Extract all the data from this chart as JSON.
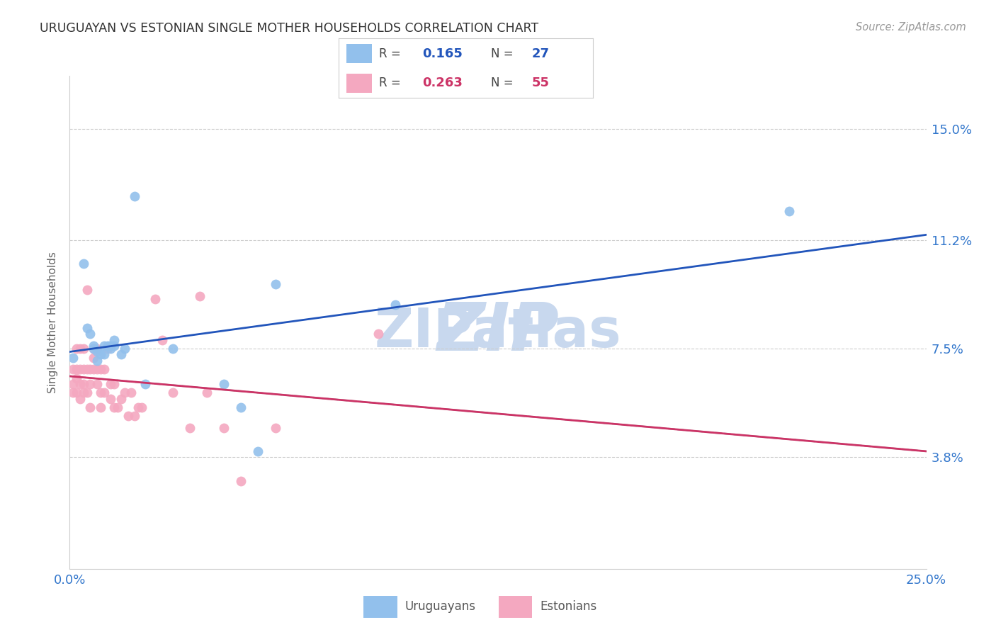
{
  "title": "URUGUAYAN VS ESTONIAN SINGLE MOTHER HOUSEHOLDS CORRELATION CHART",
  "source": "Source: ZipAtlas.com",
  "ylabel": "Single Mother Households",
  "ytick_labels": [
    "3.8%",
    "7.5%",
    "11.2%",
    "15.0%"
  ],
  "ytick_values": [
    0.038,
    0.075,
    0.112,
    0.15
  ],
  "xtick_labels": [
    "0.0%",
    "25.0%"
  ],
  "xtick_values": [
    0.0,
    0.25
  ],
  "xlim": [
    0.0,
    0.25
  ],
  "ylim": [
    0.0,
    0.168
  ],
  "uruguayan_color": "#92C0EC",
  "estonian_color": "#F4A8C0",
  "uruguayan_line_color": "#2255BB",
  "estonian_line_color": "#CC3366",
  "gray_dash_color": "#BBBBBB",
  "background_color": "#FFFFFF",
  "grid_color": "#CCCCCC",
  "title_color": "#333333",
  "axis_label_color": "#3377CC",
  "watermark_color": "#C8D8EE",
  "marker_size": 100,
  "uruguayan_points": [
    [
      0.001,
      0.072
    ],
    [
      0.004,
      0.104
    ],
    [
      0.005,
      0.082
    ],
    [
      0.006,
      0.08
    ],
    [
      0.007,
      0.075
    ],
    [
      0.007,
      0.076
    ],
    [
      0.008,
      0.074
    ],
    [
      0.008,
      0.071
    ],
    [
      0.009,
      0.073
    ],
    [
      0.01,
      0.076
    ],
    [
      0.01,
      0.073
    ],
    [
      0.011,
      0.076
    ],
    [
      0.012,
      0.075
    ],
    [
      0.012,
      0.076
    ],
    [
      0.013,
      0.076
    ],
    [
      0.013,
      0.078
    ],
    [
      0.015,
      0.073
    ],
    [
      0.016,
      0.075
    ],
    [
      0.019,
      0.127
    ],
    [
      0.022,
      0.063
    ],
    [
      0.03,
      0.075
    ],
    [
      0.045,
      0.063
    ],
    [
      0.05,
      0.055
    ],
    [
      0.055,
      0.04
    ],
    [
      0.06,
      0.097
    ],
    [
      0.095,
      0.09
    ],
    [
      0.21,
      0.122
    ]
  ],
  "estonian_points": [
    [
      0.001,
      0.068
    ],
    [
      0.001,
      0.063
    ],
    [
      0.001,
      0.06
    ],
    [
      0.002,
      0.075
    ],
    [
      0.002,
      0.068
    ],
    [
      0.002,
      0.065
    ],
    [
      0.002,
      0.06
    ],
    [
      0.003,
      0.075
    ],
    [
      0.003,
      0.068
    ],
    [
      0.003,
      0.063
    ],
    [
      0.003,
      0.058
    ],
    [
      0.004,
      0.075
    ],
    [
      0.004,
      0.068
    ],
    [
      0.004,
      0.063
    ],
    [
      0.004,
      0.06
    ],
    [
      0.005,
      0.095
    ],
    [
      0.005,
      0.068
    ],
    [
      0.005,
      0.06
    ],
    [
      0.006,
      0.068
    ],
    [
      0.006,
      0.063
    ],
    [
      0.006,
      0.055
    ],
    [
      0.007,
      0.075
    ],
    [
      0.007,
      0.072
    ],
    [
      0.007,
      0.068
    ],
    [
      0.008,
      0.075
    ],
    [
      0.008,
      0.068
    ],
    [
      0.008,
      0.063
    ],
    [
      0.009,
      0.068
    ],
    [
      0.009,
      0.06
    ],
    [
      0.009,
      0.055
    ],
    [
      0.01,
      0.068
    ],
    [
      0.01,
      0.06
    ],
    [
      0.011,
      0.075
    ],
    [
      0.012,
      0.063
    ],
    [
      0.012,
      0.058
    ],
    [
      0.013,
      0.063
    ],
    [
      0.013,
      0.055
    ],
    [
      0.014,
      0.055
    ],
    [
      0.015,
      0.058
    ],
    [
      0.016,
      0.06
    ],
    [
      0.017,
      0.052
    ],
    [
      0.018,
      0.06
    ],
    [
      0.019,
      0.052
    ],
    [
      0.02,
      0.055
    ],
    [
      0.021,
      0.055
    ],
    [
      0.025,
      0.092
    ],
    [
      0.027,
      0.078
    ],
    [
      0.03,
      0.06
    ],
    [
      0.035,
      0.048
    ],
    [
      0.038,
      0.093
    ],
    [
      0.04,
      0.06
    ],
    [
      0.045,
      0.048
    ],
    [
      0.05,
      0.03
    ],
    [
      0.06,
      0.048
    ],
    [
      0.09,
      0.08
    ]
  ],
  "legend_R1": "0.165",
  "legend_N1": "27",
  "legend_R2": "0.263",
  "legend_N2": "55"
}
